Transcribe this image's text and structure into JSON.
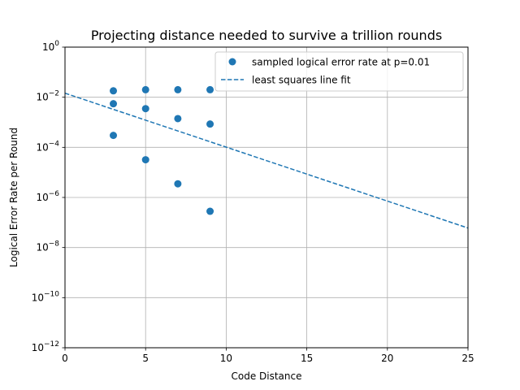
{
  "chart_data": {
    "type": "scatter",
    "title": "Projecting distance needed to survive a trillion rounds",
    "xlabel": "Code Distance",
    "ylabel": "Logical Error Rate per Round",
    "xlim": [
      0,
      25
    ],
    "ylim_exponent": [
      -12,
      0
    ],
    "yscale": "log",
    "grid": true,
    "legend_position": "top-right",
    "x_ticks": [
      {
        "value": 0,
        "label": "0"
      },
      {
        "value": 5,
        "label": "5"
      },
      {
        "value": 10,
        "label": "10"
      },
      {
        "value": 15,
        "label": "15"
      },
      {
        "value": 20,
        "label": "20"
      },
      {
        "value": 25,
        "label": "25"
      }
    ],
    "y_ticks": [
      {
        "exponent": 0,
        "base": "10",
        "exp": "0"
      },
      {
        "exponent": -2,
        "base": "10",
        "exp": "−2"
      },
      {
        "exponent": -4,
        "base": "10",
        "exp": "−4"
      },
      {
        "exponent": -6,
        "base": "10",
        "exp": "−6"
      },
      {
        "exponent": -8,
        "base": "10",
        "exp": "−8"
      },
      {
        "exponent": -10,
        "base": "10",
        "exp": "−10"
      },
      {
        "exponent": -12,
        "base": "10",
        "exp": "−12"
      }
    ],
    "series": [
      {
        "name": "sampled logical error rate at p=0.01",
        "kind": "scatter",
        "color": "#1f77b4",
        "points": [
          {
            "x": 3,
            "y": 0.018
          },
          {
            "x": 3,
            "y": 0.0055
          },
          {
            "x": 3,
            "y": 0.0003
          },
          {
            "x": 5,
            "y": 0.02
          },
          {
            "x": 5,
            "y": 0.0035
          },
          {
            "x": 5,
            "y": 3.2e-05
          },
          {
            "x": 7,
            "y": 0.02
          },
          {
            "x": 7,
            "y": 0.0014
          },
          {
            "x": 7,
            "y": 3.5e-06
          },
          {
            "x": 9,
            "y": 0.02
          },
          {
            "x": 9,
            "y": 0.00085
          },
          {
            "x": 9,
            "y": 2.8e-07
          }
        ]
      },
      {
        "name": "least squares line fit",
        "kind": "line",
        "style": "dashed",
        "color": "#1f77b4",
        "points": [
          {
            "x": 0,
            "y": 0.0145
          },
          {
            "x": 25,
            "y": 6e-08
          }
        ]
      }
    ]
  }
}
